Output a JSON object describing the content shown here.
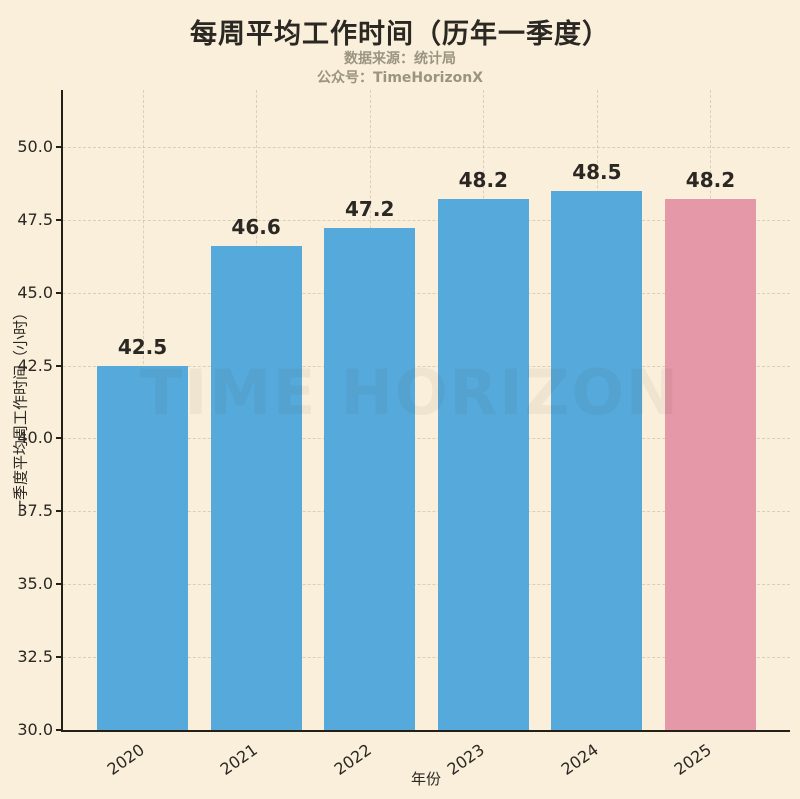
{
  "title": "每周平均工作时间（历年一季度）",
  "subtitle": {
    "line1": "数据来源：统计局",
    "line2": "公众号：TimeHorizonX"
  },
  "watermark": "TIME HORIZON",
  "colors": {
    "background": "#f9efdb",
    "bar_blue": "#56a9db",
    "bar_pink": "#e598a8",
    "text": "#2b2722",
    "subtitle_text": "#9b9480",
    "spine": "#241f17",
    "grid": "rgba(164,150,116,0.35)"
  },
  "chart_data": {
    "type": "bar",
    "title": "每周平均工作时间（历年一季度）",
    "categories": [
      "2020",
      "2021",
      "2022",
      "2023",
      "2024",
      "2025"
    ],
    "values": [
      42.5,
      46.6,
      47.2,
      48.2,
      48.5,
      48.2
    ],
    "bar_colors": [
      "#56a9db",
      "#56a9db",
      "#56a9db",
      "#56a9db",
      "#56a9db",
      "#e598a8"
    ],
    "value_labels": [
      "42.5",
      "46.6",
      "47.2",
      "48.2",
      "48.5",
      "48.2"
    ],
    "xlabel": "年份",
    "ylabel": "一季度平均周工作时间（小时）",
    "ylim": [
      30,
      51.95
    ],
    "yticks": [
      30.0,
      32.5,
      35.0,
      37.5,
      40.0,
      42.5,
      45.0,
      47.5,
      50.0
    ],
    "grid": true,
    "legend": null,
    "xtick_rotation_deg": 35
  }
}
